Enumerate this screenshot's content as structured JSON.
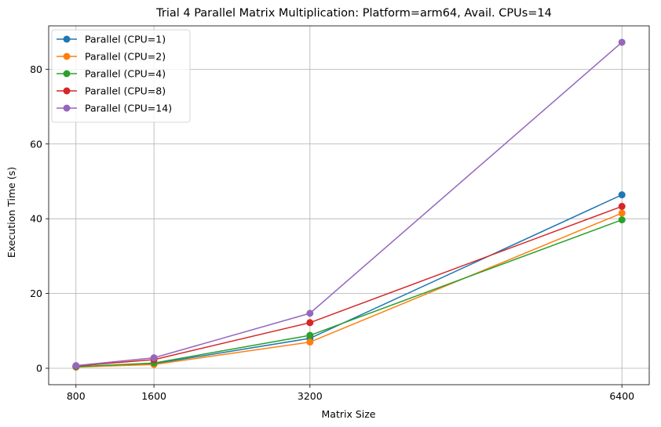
{
  "chart_data": {
    "type": "line",
    "title": "Trial 4 Parallel Matrix Multiplication: Platform=arm64, Avail. CPUs=14",
    "xlabel": "Matrix Size",
    "ylabel": "Execution Time (s)",
    "x": [
      800,
      1600,
      3200,
      6400
    ],
    "xticks": [
      800,
      1600,
      3200,
      6400
    ],
    "yticks": [
      0,
      20,
      40,
      60,
      80
    ],
    "xlim": [
      520,
      6680
    ],
    "ylim": [
      -4.4,
      91.6
    ],
    "grid": true,
    "legend_position": "top-left",
    "series": [
      {
        "name": "Parallel (CPU=1)",
        "color": "#1f77b4",
        "values": [
          0.4,
          1.2,
          8.0,
          46.4
        ]
      },
      {
        "name": "Parallel (CPU=2)",
        "color": "#ff7f0e",
        "values": [
          0.3,
          1.0,
          7.0,
          41.5
        ]
      },
      {
        "name": "Parallel (CPU=4)",
        "color": "#2ca02c",
        "values": [
          0.4,
          1.4,
          8.8,
          39.7
        ]
      },
      {
        "name": "Parallel (CPU=8)",
        "color": "#d62728",
        "values": [
          0.6,
          2.3,
          12.2,
          43.3
        ]
      },
      {
        "name": "Parallel (CPU=14)",
        "color": "#9467bd",
        "values": [
          0.7,
          2.8,
          14.7,
          87.2
        ]
      }
    ]
  }
}
